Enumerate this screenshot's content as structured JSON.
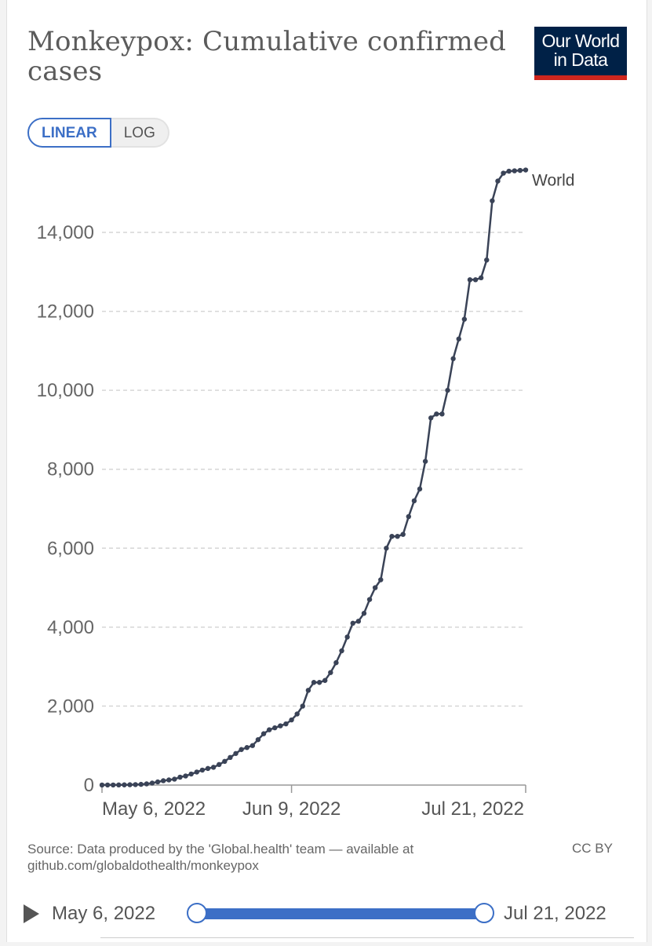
{
  "header": {
    "title": "Monkeypox: Cumulative confirmed cases",
    "logo_line1": "Our World",
    "logo_line2": "in Data"
  },
  "toggle": {
    "linear_label": "LINEAR",
    "log_label": "LOG",
    "selected": "LINEAR"
  },
  "footer": {
    "source": "Source: Data produced by the 'Global.health' team — available at github.com/globaldothealth/monkeypox",
    "license": "CC BY"
  },
  "timeline": {
    "start": "May 6, 2022",
    "end": "Jul 21, 2022"
  },
  "colors": {
    "series": "#3a4357",
    "accent": "#3c6fc6",
    "logo_bg": "#002147",
    "logo_bar": "#ce261e"
  },
  "chart_data": {
    "type": "line",
    "title": "Monkeypox: Cumulative confirmed cases",
    "xlabel": "",
    "ylabel": "",
    "ylim": [
      0,
      15500
    ],
    "grid": true,
    "y_ticks": [
      0,
      2000,
      4000,
      6000,
      8000,
      10000,
      12000,
      14000
    ],
    "y_tick_labels": [
      "0",
      "2,000",
      "4,000",
      "6,000",
      "8,000",
      "10,000",
      "12,000",
      "14,000"
    ],
    "x_ticks": [
      {
        "day": 0,
        "label": "May 6, 2022"
      },
      {
        "day": 34,
        "label": "Jun 9, 2022"
      },
      {
        "day": 76,
        "label": "Jul 21, 2022"
      }
    ],
    "x_range_days": [
      0,
      76
    ],
    "series": [
      {
        "name": "World",
        "x": [
          0,
          1,
          2,
          3,
          4,
          5,
          6,
          7,
          8,
          9,
          10,
          11,
          12,
          13,
          14,
          15,
          16,
          17,
          18,
          19,
          20,
          21,
          22,
          23,
          24,
          25,
          26,
          27,
          28,
          29,
          30,
          31,
          32,
          33,
          34,
          35,
          36,
          37,
          38,
          39,
          40,
          41,
          42,
          43,
          44,
          45,
          46,
          47,
          48,
          49,
          50,
          51,
          52,
          53,
          54,
          55,
          56,
          57,
          58,
          59,
          60,
          61,
          62,
          63,
          64,
          65,
          66,
          67,
          68,
          69,
          70,
          71,
          72,
          73,
          74,
          75,
          76
        ],
        "values": [
          1,
          2,
          2,
          3,
          5,
          8,
          12,
          18,
          30,
          50,
          80,
          110,
          130,
          150,
          200,
          230,
          280,
          330,
          380,
          420,
          450,
          520,
          600,
          700,
          800,
          900,
          950,
          1000,
          1150,
          1300,
          1400,
          1450,
          1500,
          1550,
          1650,
          1800,
          2000,
          2400,
          2600,
          2600,
          2650,
          2850,
          3100,
          3400,
          3750,
          4100,
          4150,
          4350,
          4700,
          5000,
          5200,
          6000,
          6300,
          6300,
          6350,
          6800,
          7200,
          7500,
          8200,
          9300,
          9400,
          9400,
          10000,
          10800,
          11300,
          11800,
          12800,
          12800,
          12850,
          13300,
          14800,
          15300,
          15500,
          15550,
          15560,
          15570,
          15580
        ],
        "end_label": "World"
      }
    ]
  }
}
